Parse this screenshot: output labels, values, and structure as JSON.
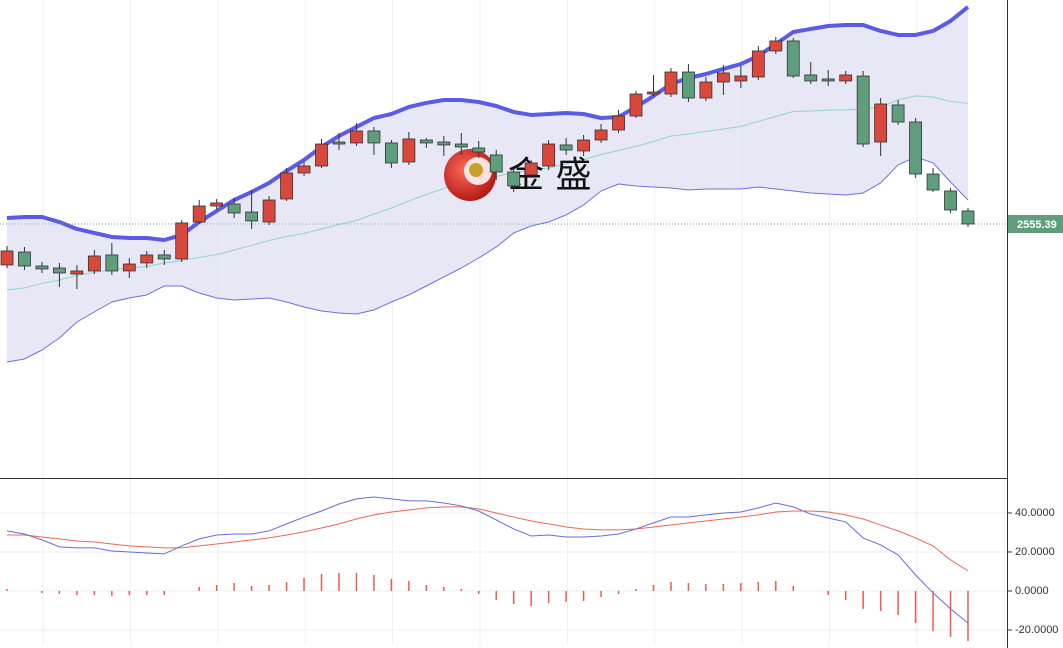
{
  "chart_data": {
    "type": "candlestick",
    "watermark": "金 盛",
    "up_color": "#d9483b",
    "down_color": "#5f9e7d",
    "ylim": [
      2237.9,
      2835.4
    ],
    "last_price": {
      "value": 2555.39,
      "label": "2555.39"
    },
    "ohlc": [
      [
        2504.2,
        2527.9,
        2500.4,
        2521.7
      ],
      [
        2520.4,
        2526.7,
        2497.9,
        2502.9
      ],
      [
        2502.9,
        2507.9,
        2494.2,
        2499.2
      ],
      [
        2500.4,
        2506.7,
        2476.7,
        2494.2
      ],
      [
        2492.9,
        2504.2,
        2474.2,
        2496.7
      ],
      [
        2496.7,
        2522.9,
        2492.9,
        2515.4
      ],
      [
        2516.7,
        2531.7,
        2491.7,
        2496.7
      ],
      [
        2496.7,
        2512.9,
        2487.9,
        2505.4
      ],
      [
        2506.7,
        2521.7,
        2500.4,
        2516.7
      ],
      [
        2516.7,
        2522.9,
        2504.2,
        2511.7
      ],
      [
        2511.7,
        2560.4,
        2507.9,
        2556.7
      ],
      [
        2557.9,
        2585.4,
        2555.4,
        2577.9
      ],
      [
        2577.9,
        2586.7,
        2572.9,
        2581.7
      ],
      [
        2580.4,
        2587.9,
        2562.9,
        2569.2
      ],
      [
        2570.4,
        2597.9,
        2549.2,
        2559.2
      ],
      [
        2557.9,
        2590.4,
        2554.2,
        2585.4
      ],
      [
        2586.7,
        2625.4,
        2584.2,
        2619.2
      ],
      [
        2619.2,
        2632.9,
        2615.4,
        2627.9
      ],
      [
        2627.9,
        2661.7,
        2625.4,
        2655.4
      ],
      [
        2657.9,
        2669.2,
        2647.9,
        2655.4
      ],
      [
        2656.7,
        2681.7,
        2652.9,
        2671.7
      ],
      [
        2671.7,
        2676.7,
        2641.7,
        2656.7
      ],
      [
        2656.7,
        2660.4,
        2625.4,
        2631.7
      ],
      [
        2632.9,
        2670.4,
        2629.2,
        2661.7
      ],
      [
        2660.4,
        2662.9,
        2650.4,
        2656.7
      ],
      [
        2657.9,
        2665.4,
        2640.4,
        2654.2
      ],
      [
        2655.4,
        2669.2,
        2641.7,
        2651.7
      ],
      [
        2650.4,
        2659.2,
        2637.9,
        2645.4
      ],
      [
        2641.7,
        2647.9,
        2610.4,
        2620.4
      ],
      [
        2620.4,
        2625.4,
        2595.4,
        2602.9
      ],
      [
        2616.7,
        2635.4,
        2612.9,
        2631.7
      ],
      [
        2627.9,
        2660.4,
        2622.9,
        2655.4
      ],
      [
        2654.2,
        2662.9,
        2641.7,
        2647.9
      ],
      [
        2646.7,
        2666.7,
        2640.4,
        2660.4
      ],
      [
        2660.4,
        2680.4,
        2656.7,
        2672.9
      ],
      [
        2672.9,
        2697.9,
        2669.2,
        2690.4
      ],
      [
        2690.4,
        2721.7,
        2687.9,
        2717.9
      ],
      [
        2717.9,
        2741.7,
        2715.4,
        2720.4
      ],
      [
        2717.9,
        2750.4,
        2714.2,
        2745.4
      ],
      [
        2745.4,
        2755.4,
        2707.9,
        2712.9
      ],
      [
        2712.9,
        2739.2,
        2709.2,
        2732.9
      ],
      [
        2732.9,
        2754.2,
        2716.7,
        2744.2
      ],
      [
        2734.2,
        2752.9,
        2725.4,
        2740.4
      ],
      [
        2739.2,
        2777.9,
        2735.4,
        2771.7
      ],
      [
        2771.7,
        2789.2,
        2767.9,
        2784.2
      ],
      [
        2784.2,
        2787.9,
        2737.9,
        2740.4
      ],
      [
        2741.7,
        2757.9,
        2730.4,
        2734.2
      ],
      [
        2736.7,
        2747.9,
        2727.9,
        2734.2
      ],
      [
        2734.2,
        2746.7,
        2730.4,
        2741.7
      ],
      [
        2740.4,
        2746.7,
        2651.7,
        2655.4
      ],
      [
        2657.9,
        2712.9,
        2640.4,
        2705.4
      ],
      [
        2704.2,
        2710.4,
        2679.2,
        2682.9
      ],
      [
        2682.9,
        2687.9,
        2612.9,
        2617.9
      ],
      [
        2617.9,
        2625.4,
        2595.4,
        2597.9
      ],
      [
        2596.7,
        2600.4,
        2569.2,
        2572.9
      ],
      [
        2571.7,
        2575.4,
        2551.7,
        2555.39
      ]
    ],
    "bands": {
      "fill": "#e4e4f4",
      "upper": {
        "color": "#5b5be6",
        "values": [
          2562.9,
          2564.2,
          2564.2,
          2557.9,
          2549.2,
          2544.2,
          2539.2,
          2537.9,
          2537.9,
          2535.4,
          2541.7,
          2557.9,
          2571.7,
          2585.4,
          2595.4,
          2606.7,
          2621.7,
          2635.4,
          2651.7,
          2665.4,
          2676.7,
          2687.9,
          2692.9,
          2701.7,
          2706.7,
          2710.4,
          2710.4,
          2707.9,
          2702.9,
          2695.4,
          2691.7,
          2692.9,
          2694.2,
          2692.9,
          2687.9,
          2689.2,
          2701.7,
          2715.4,
          2730.4,
          2737.9,
          2742.9,
          2749.2,
          2755.4,
          2765.4,
          2780.4,
          2795.4,
          2799.2,
          2802.9,
          2804.2,
          2804.2,
          2796.7,
          2791.7,
          2791.7,
          2796.7,
          2809.2,
          2826.7
        ]
      },
      "middle": {
        "color": "#8fd6c4",
        "values": [
          2472.9,
          2475.5,
          2481.1,
          2485.4,
          2491.1,
          2494.8,
          2498.6,
          2500.4,
          2502.3,
          2506.7,
          2509.8,
          2513.6,
          2517.3,
          2522.9,
          2528.6,
          2534.8,
          2539.8,
          2543.6,
          2549.2,
          2554.8,
          2559.8,
          2567.9,
          2575.4,
          2584.2,
          2592.3,
          2599.8,
          2605.4,
          2610.4,
          2614.8,
          2619.8,
          2622.3,
          2625.4,
          2630.5,
          2636.1,
          2642.3,
          2647.3,
          2652.3,
          2658.6,
          2665.4,
          2667.9,
          2671.1,
          2674.2,
          2677.3,
          2683.6,
          2689.8,
          2696.1,
          2696.7,
          2697.9,
          2698.0,
          2699.2,
          2701.7,
          2710.5,
          2715.5,
          2714.2,
          2708.6,
          2706.1
        ]
      },
      "lower": {
        "color": "#6f6fe0",
        "values": [
          2382.9,
          2386.7,
          2397.9,
          2412.9,
          2432.9,
          2445.4,
          2457.9,
          2462.9,
          2466.7,
          2477.9,
          2477.9,
          2469.2,
          2462.9,
          2460.4,
          2461.7,
          2462.9,
          2457.9,
          2451.7,
          2446.7,
          2444.2,
          2442.9,
          2447.9,
          2457.9,
          2466.7,
          2477.9,
          2489.2,
          2500.4,
          2512.9,
          2526.7,
          2544.2,
          2552.9,
          2557.9,
          2566.7,
          2579.2,
          2596.7,
          2605.4,
          2602.9,
          2601.7,
          2600.4,
          2597.9,
          2599.2,
          2599.2,
          2599.2,
          2601.7,
          2599.2,
          2596.7,
          2594.2,
          2592.9,
          2591.7,
          2594.2,
          2606.7,
          2629.2,
          2639.2,
          2631.7,
          2607.9,
          2585.4
        ]
      }
    },
    "macd": {
      "ylim": [
        -27.7,
        56.9
      ],
      "yticks": [
        {
          "value": 40,
          "label": "40.0000"
        },
        {
          "value": 20,
          "label": "20.0000"
        },
        {
          "value": 0,
          "label": "0.0000"
        },
        {
          "value": -20,
          "label": "-20.0000"
        }
      ],
      "grid": true,
      "dif": {
        "color": "#6b6bd8",
        "values": [
          30.8,
          29.2,
          26.2,
          22.6,
          22.1,
          22.1,
          20.5,
          20.0,
          19.5,
          19.0,
          23.1,
          26.7,
          28.7,
          29.2,
          29.2,
          30.8,
          34.4,
          37.9,
          41.0,
          44.6,
          47.2,
          48.2,
          47.2,
          46.2,
          46.2,
          45.1,
          43.6,
          41.0,
          36.4,
          31.8,
          28.2,
          28.7,
          27.7,
          27.7,
          28.2,
          29.2,
          31.8,
          34.9,
          37.9,
          37.9,
          39.0,
          40.0,
          40.5,
          42.6,
          45.1,
          43.1,
          39.5,
          37.4,
          35.4,
          27.2,
          23.6,
          18.5,
          8.2,
          -1.0,
          -9.2,
          -16.4
        ]
      },
      "dea": {
        "color": "#e8685c",
        "values": [
          28.7,
          28.7,
          27.7,
          26.7,
          25.6,
          25.1,
          24.1,
          23.1,
          22.6,
          22.1,
          22.1,
          23.1,
          24.1,
          25.1,
          26.2,
          27.2,
          28.7,
          30.3,
          32.3,
          34.4,
          36.9,
          39.0,
          40.5,
          41.5,
          42.6,
          43.1,
          43.1,
          42.1,
          40.0,
          37.9,
          35.9,
          34.4,
          32.8,
          31.8,
          31.3,
          31.3,
          31.8,
          32.8,
          33.8,
          34.9,
          35.9,
          36.9,
          37.9,
          39.0,
          40.5,
          41.0,
          41.0,
          40.5,
          39.0,
          36.9,
          33.8,
          30.8,
          27.2,
          23.1,
          15.9,
          10.3
        ]
      },
      "hist": {
        "color": "#ee5a4e",
        "values": [
          1.0,
          0,
          -1.0,
          -1.5,
          -2.1,
          -2.1,
          -2.6,
          -2.1,
          -2.1,
          -2.1,
          0,
          2.1,
          3.1,
          4.1,
          2.6,
          3.1,
          4.6,
          6.7,
          8.7,
          9.2,
          9.2,
          8.2,
          6.2,
          5.1,
          3.1,
          2.1,
          1.0,
          -1.5,
          -4.6,
          -6.7,
          -7.7,
          -6.2,
          -5.6,
          -5.1,
          -3.1,
          -1.5,
          1.0,
          3.1,
          4.6,
          4.1,
          3.6,
          3.6,
          4.1,
          4.6,
          5.1,
          2.6,
          0,
          -2.1,
          -4.6,
          -9.2,
          -10.3,
          -12.3,
          -16.4,
          -20.5,
          -23.6,
          -25.6
        ]
      }
    }
  }
}
